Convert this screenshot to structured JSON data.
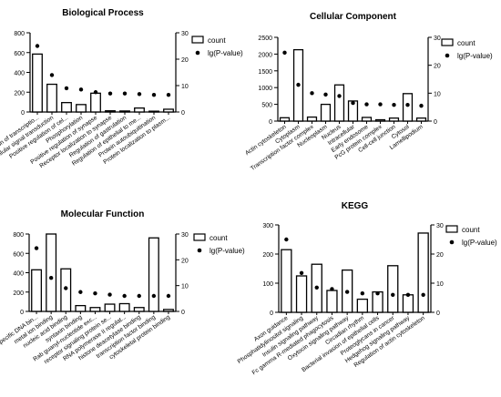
{
  "colors": {
    "bar_fill": "#ffffff",
    "bar_stroke": "#000000",
    "point": "#000000",
    "axis": "#000000"
  },
  "legend": {
    "count_label": "count",
    "pvalue_label": "lg(P-value)"
  },
  "chart_data": [
    {
      "id": "bp",
      "type": "bar",
      "title": "Biological Process",
      "categories": [
        "Regulation of transcriptio...",
        "Intracellular signal transduction",
        "Positive regulation of cel...",
        "Phosphorylation",
        "Positive regulation of synapse",
        "Receptor localization to synapse",
        "Regulation of gastrulation",
        "Regulation of epithelial to me...",
        "Protein autoubiquitination",
        "Protein localization to plasm..."
      ],
      "series": [
        {
          "name": "count",
          "axis": "left",
          "kind": "bar",
          "values": [
            585,
            280,
            95,
            75,
            190,
            12,
            10,
            40,
            8,
            28
          ]
        },
        {
          "name": "lg(P-value)",
          "axis": "right",
          "kind": "point",
          "values": [
            25,
            14,
            9,
            8.5,
            7.5,
            7,
            7,
            6.8,
            6.5,
            6.5
          ]
        }
      ],
      "y_left": {
        "min": 0,
        "max": 800,
        "ticks": [
          0,
          200,
          400,
          600,
          800
        ]
      },
      "y_right": {
        "min": 0,
        "max": 30,
        "ticks": [
          0,
          10,
          20,
          30
        ]
      },
      "legend_position": "top-right"
    },
    {
      "id": "cc",
      "type": "bar",
      "title": "Cellular Component",
      "categories": [
        "Actin cytoskeleton",
        "Cytoplasm",
        "Transcription factor complex",
        "Nucleoplasm",
        "Nucleus",
        "Intracellular",
        "Early endosome",
        "PcG protein complex",
        "Cell-cell junction",
        "Cytosol",
        "Lamellipodium"
      ],
      "series": [
        {
          "name": "count",
          "axis": "left",
          "kind": "bar",
          "values": [
            100,
            2130,
            120,
            500,
            1080,
            600,
            110,
            40,
            90,
            820,
            90
          ]
        },
        {
          "name": "lg(P-value)",
          "axis": "right",
          "kind": "point",
          "values": [
            24.5,
            13,
            10,
            9.5,
            9,
            6.5,
            6,
            6,
            5.8,
            5.8,
            5.5
          ]
        }
      ],
      "y_left": {
        "min": 0,
        "max": 2500,
        "ticks": [
          0,
          500,
          1000,
          1500,
          2000,
          2500
        ]
      },
      "y_right": {
        "min": 0,
        "max": 30,
        "ticks": [
          0,
          10,
          20,
          30
        ]
      },
      "legend_position": "top-right"
    },
    {
      "id": "mf",
      "type": "bar",
      "title": "Molecular Function",
      "categories": [
        "sequence-specific DNA bin...",
        "metal ion binding",
        "nucleic acid binding",
        "syntaxin binding",
        "Rab guanyl-nucleotide exc...",
        "receptor signaling protein se...",
        "RNA polymerase II regulat...",
        "histone deacetylase binding",
        "transcription factor binding",
        "cytoskeletal protein binding"
      ],
      "series": [
        {
          "name": "count",
          "axis": "left",
          "kind": "bar",
          "values": [
            430,
            800,
            440,
            60,
            40,
            75,
            80,
            40,
            760,
            20
          ]
        },
        {
          "name": "lg(P-value)",
          "axis": "right",
          "kind": "point",
          "values": [
            24.5,
            13,
            9,
            7.5,
            7,
            6.5,
            6,
            6,
            6,
            6
          ]
        }
      ],
      "y_left": {
        "min": 0,
        "max": 800,
        "ticks": [
          0,
          200,
          400,
          600,
          800
        ]
      },
      "y_right": {
        "min": 0,
        "max": 30,
        "ticks": [
          0,
          10,
          20,
          30
        ]
      },
      "legend_position": "top-right"
    },
    {
      "id": "kegg",
      "type": "bar",
      "title": "KEGG",
      "categories": [
        "Axon guidance",
        "Phosphatidylinositol signaling",
        "Insulin signaling pathway",
        "Fc gamma R-mediated phagocytosis",
        "Oxytocin signaling pathway",
        "Circadian rhythm",
        "Bacterial invasion of epithelial cells",
        "Proteoglycans in cancer",
        "Hedgehog signaling pathway",
        "Regulation of actin cytoskeleton"
      ],
      "series": [
        {
          "name": "count",
          "axis": "left",
          "kind": "bar",
          "values": [
            215,
            125,
            165,
            75,
            145,
            45,
            70,
            160,
            60,
            272
          ]
        },
        {
          "name": "lg(P-value)",
          "axis": "right",
          "kind": "point",
          "values": [
            25,
            13.5,
            8.5,
            8,
            7,
            6.5,
            6.5,
            6,
            6,
            6
          ]
        }
      ],
      "y_left": {
        "min": 0,
        "max": 300,
        "ticks": [
          0,
          100,
          200,
          300
        ]
      },
      "y_right": {
        "min": 0,
        "max": 30,
        "ticks": [
          0,
          10,
          20,
          30
        ]
      },
      "legend_position": "top-right"
    }
  ]
}
